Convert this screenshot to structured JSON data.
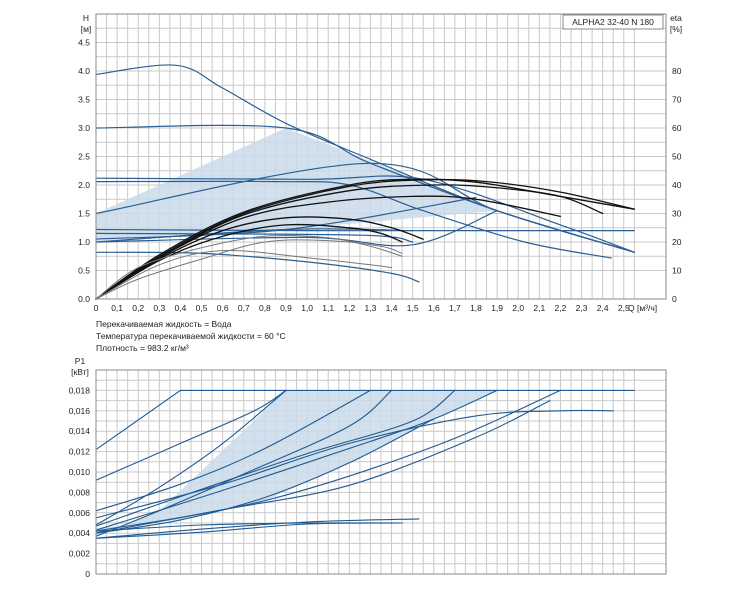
{
  "chart_data": [
    {
      "type": "line",
      "title": "ALPHA2 32-40 N 180",
      "ylabel": "H\n[м]",
      "y2label": "eta\n[%]",
      "xlabel": "Q [м³/ч]",
      "xlim": [
        0,
        2.7
      ],
      "ylim": [
        0,
        5.0
      ],
      "y2lim": [
        0,
        100
      ],
      "xticks": [
        0,
        0.1,
        0.2,
        0.3,
        0.4,
        0.5,
        0.6,
        0.7,
        0.8,
        0.9,
        1.0,
        1.1,
        1.2,
        1.3,
        1.4,
        1.5,
        1.6,
        1.7,
        1.8,
        1.9,
        2.0,
        2.1,
        2.2,
        2.3,
        2.4,
        2.5
      ],
      "xtick_labels": [
        "0",
        "0,1",
        "0,2",
        "0,3",
        "0,4",
        "0,5",
        "0,6",
        "0,7",
        "0,8",
        "0,9",
        "1,0",
        "1,1",
        "1,2",
        "1,3",
        "1,4",
        "1,5",
        "1,6",
        "1,7",
        "1,8",
        "1,9",
        "2,0",
        "2,1",
        "2,2",
        "2,3",
        "2,4",
        "2,5"
      ],
      "yticks": [
        0,
        0.5,
        1.0,
        1.5,
        2.0,
        2.5,
        3.0,
        3.5,
        4.0,
        4.5
      ],
      "ytick_labels": [
        "0.0",
        "0.5",
        "1.0",
        "1.5",
        "2.0",
        "2.5",
        "3.0",
        "3.5",
        "4.0",
        "4.5"
      ],
      "y2ticks": [
        0,
        10,
        20,
        30,
        40,
        50,
        60,
        70,
        80
      ],
      "y2tick_labels": [
        "0",
        "10",
        "20",
        "30",
        "40",
        "50",
        "60",
        "70",
        "80"
      ],
      "grid": true,
      "shaded_region": [
        [
          0,
          1.5
        ],
        [
          0.9,
          3.0
        ],
        [
          1.9,
          1.55
        ],
        [
          0.9,
          1.22
        ],
        [
          0,
          1.0
        ]
      ],
      "series": [
        {
          "color": "#2a5f96",
          "axis": "H",
          "width": 1.2,
          "points": [
            [
              0,
              3.94
            ],
            [
              0.38,
              4.1
            ],
            [
              0.6,
              3.7
            ],
            [
              0.9,
              3.08
            ],
            [
              1.3,
              2.45
            ],
            [
              1.9,
              1.55
            ],
            [
              2.55,
              0.82
            ]
          ]
        },
        {
          "color": "#2a5f96",
          "axis": "H",
          "width": 1.2,
          "points": [
            [
              0,
              3.0
            ],
            [
              0.9,
              3.0
            ],
            [
              1.3,
              2.38
            ],
            [
              1.9,
              1.55
            ],
            [
              2.55,
              0.82
            ]
          ]
        },
        {
          "color": "#2a5f96",
          "axis": "H",
          "width": 1.2,
          "points": [
            [
              0,
              2.12
            ],
            [
              1.0,
              2.1
            ],
            [
              1.55,
              2.1
            ],
            [
              2.2,
              1.3
            ],
            [
              2.55,
              0.82
            ]
          ]
        },
        {
          "color": "#2a5f96",
          "axis": "H",
          "width": 1.2,
          "points": [
            [
              0,
              2.06
            ],
            [
              0.85,
              2.06
            ],
            [
              1.2,
              2.0
            ],
            [
              1.55,
              1.55
            ],
            [
              2.03,
              1.0
            ],
            [
              2.44,
              0.72
            ]
          ]
        },
        {
          "color": "#2a5f96",
          "axis": "H",
          "width": 1.2,
          "points": [
            [
              0,
              1.5
            ],
            [
              1.3,
              2.38
            ],
            [
              1.9,
              1.55
            ],
            [
              2.55,
              0.82
            ]
          ]
        },
        {
          "color": "#2a5f96",
          "axis": "H",
          "width": 1.2,
          "points": [
            [
              0,
              1.22
            ],
            [
              1.0,
              1.2
            ],
            [
              1.5,
              1.2
            ],
            [
              2.55,
              1.2
            ]
          ]
        },
        {
          "color": "#2a5f96",
          "axis": "H",
          "width": 1.2,
          "points": [
            [
              0,
              1.15
            ],
            [
              1.25,
              1.12
            ],
            [
              1.5,
              1.0
            ]
          ]
        },
        {
          "color": "#2a5f96",
          "axis": "H",
          "width": 1.2,
          "points": [
            [
              0,
              1.05
            ],
            [
              0.9,
              1.22
            ],
            [
              1.8,
              1.78
            ]
          ]
        },
        {
          "color": "#2a5f96",
          "axis": "H",
          "width": 1.2,
          "points": [
            [
              0,
              1.0
            ],
            [
              1.0,
              1.08
            ],
            [
              1.5,
              0.95
            ],
            [
              1.9,
              1.55
            ]
          ]
        },
        {
          "color": "#2a5f96",
          "axis": "H",
          "width": 1.2,
          "points": [
            [
              0,
              1.0
            ],
            [
              0.9,
              1.22
            ],
            [
              1.5,
              1.2
            ]
          ]
        },
        {
          "color": "#2a5f96",
          "axis": "H",
          "width": 1.2,
          "points": [
            [
              0,
              0.82
            ],
            [
              0.5,
              0.8
            ],
            [
              1.0,
              0.65
            ],
            [
              1.4,
              0.45
            ],
            [
              1.53,
              0.3
            ]
          ]
        },
        {
          "color": "#111111",
          "axis": "eta",
          "width": 1.3,
          "points": [
            [
              0,
              0
            ],
            [
              0.3,
              15.5
            ],
            [
              0.7,
              30.5
            ],
            [
              1.2,
              40.0
            ],
            [
              1.5,
              42.0
            ],
            [
              1.8,
              41.0
            ],
            [
              2.2,
              36.0
            ],
            [
              2.55,
              31.5
            ]
          ]
        },
        {
          "color": "#111111",
          "axis": "eta",
          "width": 1.3,
          "points": [
            [
              0,
              0
            ],
            [
              0.3,
              15.0
            ],
            [
              0.7,
              30.0
            ],
            [
              1.2,
              39.5
            ],
            [
              1.55,
              41.8
            ],
            [
              1.85,
              41.2
            ],
            [
              2.2,
              37.5
            ],
            [
              2.55,
              31.5
            ]
          ]
        },
        {
          "color": "#111111",
          "axis": "eta",
          "width": 1.3,
          "points": [
            [
              0,
              0
            ],
            [
              0.3,
              14.5
            ],
            [
              0.7,
              29.5
            ],
            [
              1.2,
              38.0
            ],
            [
              1.6,
              40.0
            ],
            [
              1.9,
              39.0
            ],
            [
              2.2,
              36.0
            ],
            [
              2.4,
              30.0
            ]
          ]
        },
        {
          "color": "#111111",
          "axis": "eta",
          "width": 1.3,
          "points": [
            [
              0,
              0
            ],
            [
              0.3,
              14.5
            ],
            [
              0.7,
              28.5
            ],
            [
              1.1,
              34.0
            ],
            [
              1.5,
              36.0
            ],
            [
              1.8,
              35.0
            ],
            [
              2.2,
              29.0
            ]
          ]
        },
        {
          "color": "#111111",
          "axis": "eta",
          "width": 1.3,
          "points": [
            [
              0,
              0
            ],
            [
              0.3,
              14.0
            ],
            [
              0.6,
              24.0
            ],
            [
              0.9,
              28.5
            ],
            [
              1.2,
              28.0
            ],
            [
              1.4,
              25.0
            ],
            [
              1.55,
              21.0
            ]
          ]
        },
        {
          "color": "#111111",
          "axis": "eta",
          "width": 1.3,
          "points": [
            [
              0,
              0
            ],
            [
              0.3,
              13.5
            ],
            [
              0.6,
              22.0
            ],
            [
              0.9,
              26.0
            ],
            [
              1.2,
              25.0
            ],
            [
              1.35,
              23.0
            ],
            [
              1.45,
              20.0
            ]
          ]
        },
        {
          "color": "#777777",
          "axis": "eta",
          "width": 1.0,
          "points": [
            [
              0,
              0
            ],
            [
              0.2,
              11.0
            ],
            [
              0.5,
              18.0
            ],
            [
              0.8,
              22.0
            ],
            [
              1.1,
              21.5
            ],
            [
              1.3,
              18.5
            ],
            [
              1.45,
              15.0
            ]
          ]
        },
        {
          "color": "#777777",
          "axis": "eta",
          "width": 1.0,
          "points": [
            [
              0,
              0
            ],
            [
              0.2,
              7.0
            ],
            [
              0.5,
              14.0
            ],
            [
              0.8,
              20.0
            ],
            [
              1.1,
              20.5
            ],
            [
              1.35,
              18.5
            ],
            [
              1.45,
              16.0
            ]
          ]
        },
        {
          "color": "#777777",
          "axis": "eta",
          "width": 1.0,
          "points": [
            [
              0,
              0
            ],
            [
              0.3,
              12.0
            ],
            [
              0.6,
              17.0
            ],
            [
              1.0,
              14.5
            ],
            [
              1.3,
              12.0
            ],
            [
              1.4,
              11.0
            ]
          ]
        }
      ]
    },
    {
      "type": "line",
      "ylabel": "P1\n[кВт]",
      "xlim": [
        0,
        2.7
      ],
      "ylim": [
        0,
        0.02
      ],
      "yticks": [
        0,
        0.002,
        0.004,
        0.006,
        0.008,
        0.01,
        0.012,
        0.014,
        0.016,
        0.018
      ],
      "ytick_labels": [
        "0",
        "0,002",
        "0,004",
        "0,006",
        "0,008",
        "0,010",
        "0,012",
        "0,014",
        "0,016",
        "0,018"
      ],
      "grid": true,
      "shaded_region": [
        [
          0,
          0.0037
        ],
        [
          0.3,
          0.0062
        ],
        [
          0.9,
          0.018
        ],
        [
          1.9,
          0.018
        ],
        [
          1.6,
          0.0152
        ],
        [
          1.2,
          0.0109
        ],
        [
          0.8,
          0.0072
        ],
        [
          0.4,
          0.0053
        ],
        [
          0,
          0.0045
        ]
      ],
      "series": [
        {
          "color": "#1f5a93",
          "width": 1.1,
          "points": [
            [
              0.4,
              0.018
            ],
            [
              2.55,
              0.018
            ]
          ]
        },
        {
          "color": "#1f5a93",
          "width": 1.1,
          "points": [
            [
              0,
              0.0122
            ],
            [
              0.4,
              0.018
            ]
          ]
        },
        {
          "color": "#1f5a93",
          "width": 1.1,
          "points": [
            [
              0,
              0.0092
            ],
            [
              0.4,
              0.0128
            ],
            [
              0.75,
              0.016
            ],
            [
              0.9,
              0.018
            ]
          ]
        },
        {
          "color": "#1f5a93",
          "width": 1.1,
          "points": [
            [
              0,
              0.0048
            ],
            [
              0.3,
              0.0085
            ],
            [
              0.6,
              0.0128
            ],
            [
              0.9,
              0.018
            ]
          ]
        },
        {
          "color": "#1f5a93",
          "width": 1.1,
          "points": [
            [
              0,
              0.0062
            ],
            [
              0.4,
              0.0088
            ],
            [
              0.8,
              0.0123
            ],
            [
              1.3,
              0.018
            ]
          ]
        },
        {
          "color": "#1f5a93",
          "width": 1.1,
          "points": [
            [
              0,
              0.0037
            ],
            [
              0.3,
              0.0062
            ],
            [
              0.7,
              0.0098
            ],
            [
              1.2,
              0.0145
            ],
            [
              1.4,
              0.018
            ]
          ]
        },
        {
          "color": "#1f5a93",
          "width": 1.1,
          "points": [
            [
              0,
              0.0047
            ],
            [
              0.5,
              0.0083
            ],
            [
              1.0,
              0.0118
            ],
            [
              1.5,
              0.015
            ],
            [
              1.7,
              0.018
            ]
          ]
        },
        {
          "color": "#1f5a93",
          "width": 1.1,
          "points": [
            [
              0,
              0.0043
            ],
            [
              0.6,
              0.0082
            ],
            [
              1.3,
              0.013
            ],
            [
              1.6,
              0.0152
            ],
            [
              1.9,
              0.018
            ]
          ]
        },
        {
          "color": "#1f5a93",
          "width": 1.1,
          "points": [
            [
              0,
              0.0042
            ],
            [
              0.8,
              0.0072
            ],
            [
              1.6,
              0.0125
            ],
            [
              2.2,
              0.018
            ]
          ]
        },
        {
          "color": "#1f5a93",
          "width": 1.1,
          "points": [
            [
              0,
              0.004
            ],
            [
              0.4,
              0.0053
            ],
            [
              0.8,
              0.0075
            ],
            [
              1.2,
              0.0109
            ],
            [
              1.6,
              0.0152
            ]
          ]
        },
        {
          "color": "#1f5a93",
          "width": 1.1,
          "points": [
            [
              0,
              0.004
            ],
            [
              0.6,
              0.0063
            ],
            [
              1.2,
              0.0087
            ],
            [
              1.8,
              0.0134
            ],
            [
              2.15,
              0.017
            ]
          ]
        },
        {
          "color": "#1f5a93",
          "width": 1.1,
          "points": [
            [
              0,
              0.0055
            ],
            [
              0.6,
              0.0088
            ],
            [
              1.2,
              0.0128
            ],
            [
              1.8,
              0.0155
            ],
            [
              2.2,
              0.016
            ],
            [
              2.45,
              0.016
            ]
          ]
        },
        {
          "color": "#1f5a93",
          "width": 1.1,
          "points": [
            [
              0,
              0.0035
            ],
            [
              0.5,
              0.0044
            ],
            [
              1.0,
              0.0051
            ],
            [
              1.53,
              0.0054
            ]
          ]
        },
        {
          "color": "#1f5a93",
          "width": 1.1,
          "points": [
            [
              0,
              0.0042
            ],
            [
              0.5,
              0.0048
            ],
            [
              1.0,
              0.005
            ],
            [
              1.45,
              0.005
            ]
          ]
        },
        {
          "color": "#1f5a93",
          "width": 1.1,
          "points": [
            [
              0,
              0.0035
            ],
            [
              0.5,
              0.0041
            ],
            [
              1.0,
              0.0049
            ],
            [
              1.45,
              0.005
            ]
          ]
        }
      ]
    }
  ],
  "annotations": {
    "fluid": "Перекачиваемая жидкость = Вода",
    "temperature": "Температура перекачиваемой жидкости = 60 °C",
    "density": "Плотность = 983.2 кг/м³"
  }
}
